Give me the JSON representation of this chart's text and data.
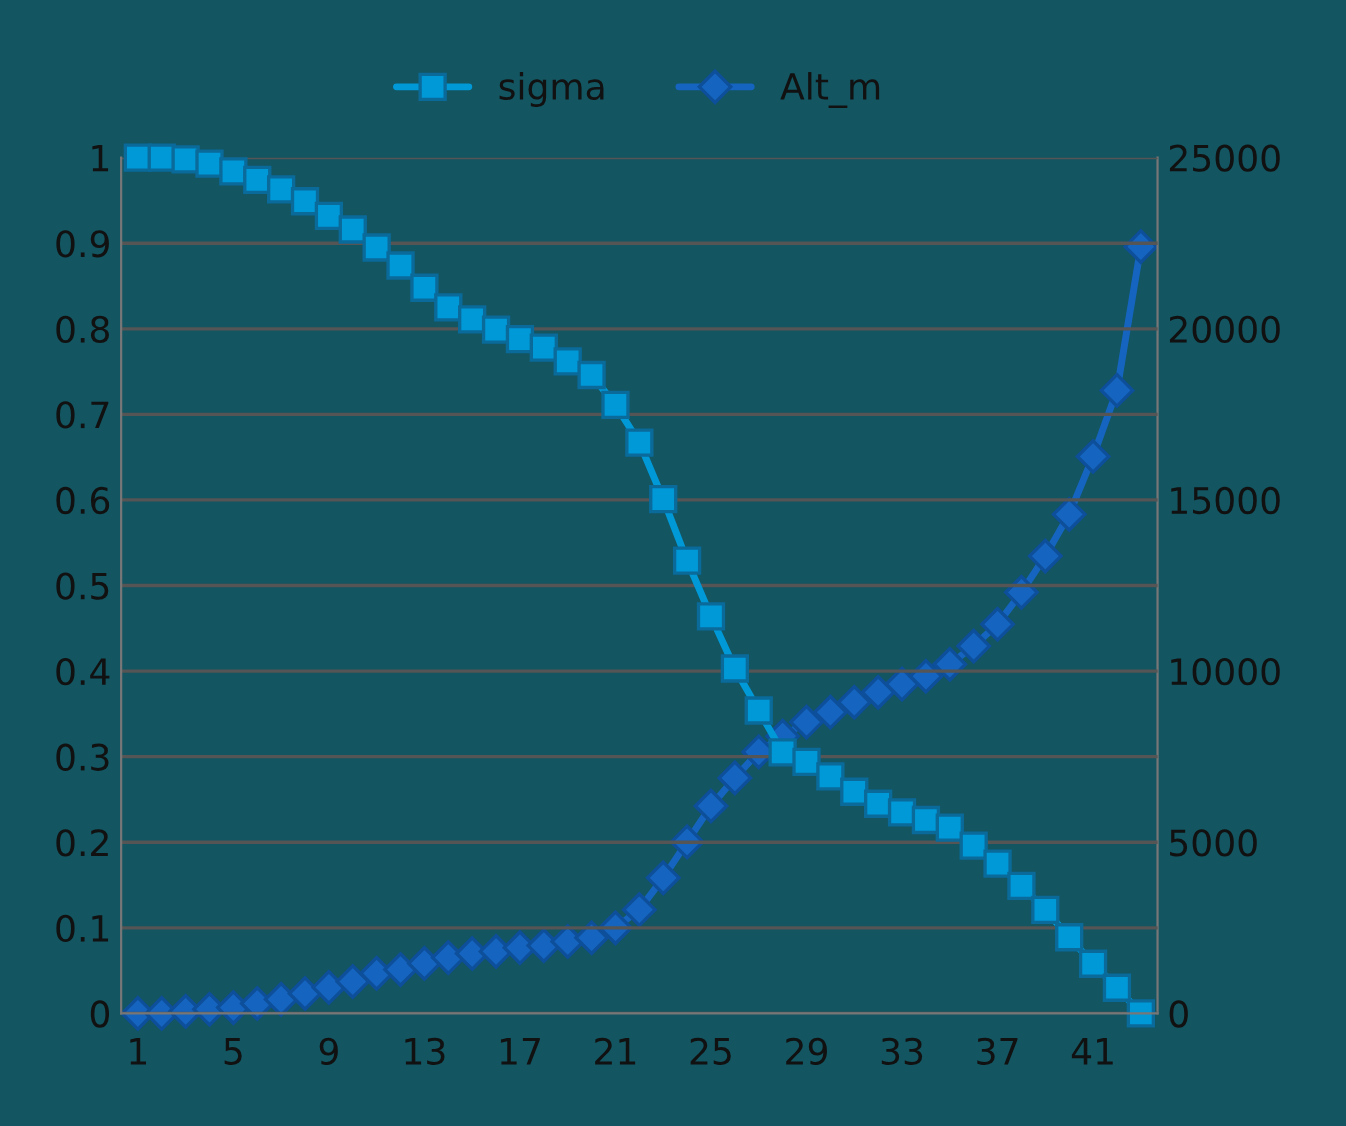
{
  "chart_data": {
    "type": "line",
    "categories": [
      "1",
      null,
      null,
      null,
      "5",
      null,
      null,
      null,
      "9",
      null,
      null,
      null,
      "13",
      null,
      null,
      null,
      "17",
      null,
      null,
      null,
      "21",
      null,
      null,
      null,
      "25",
      null,
      null,
      null,
      "29",
      null,
      null,
      null,
      "33",
      null,
      null,
      null,
      "37",
      null,
      null,
      null,
      "41",
      null,
      null
    ],
    "series": [
      {
        "name": "sigma",
        "color": "#0099d8",
        "marker": "square",
        "values": [
          1.0,
          1.0,
          0.998,
          0.993,
          0.984,
          0.974,
          0.963,
          0.949,
          0.932,
          0.916,
          0.895,
          0.874,
          0.848,
          0.825,
          0.811,
          0.799,
          0.788,
          0.778,
          0.762,
          0.746,
          0.711,
          0.667,
          0.601,
          0.529,
          0.464,
          0.403,
          0.354,
          0.305,
          0.294,
          0.277,
          0.259,
          0.245,
          0.235,
          0.226,
          0.217,
          0.196,
          0.175,
          0.149,
          0.121,
          0.089,
          0.058,
          0.03,
          0.0
        ]
      },
      {
        "name": "Alt_m",
        "color": "#1565c0",
        "marker": "diamond",
        "axis": "y2",
        "values": [
          0,
          0,
          60,
          120,
          170,
          290,
          410,
          580,
          760,
          930,
          1170,
          1280,
          1460,
          1630,
          1750,
          1810,
          1920,
          1980,
          2100,
          2210,
          2500,
          3030,
          3960,
          5010,
          6060,
          6880,
          7640,
          8100,
          8510,
          8800,
          9090,
          9380,
          9620,
          9850,
          10200,
          10730,
          11370,
          12300,
          13360,
          14580,
          16270,
          18200,
          22400
        ]
      }
    ],
    "ylim": [
      0,
      1
    ],
    "yticks": [
      0,
      0.1,
      0.2,
      0.3,
      0.4,
      0.5,
      0.6,
      0.7,
      0.8,
      0.9,
      1
    ],
    "y2lim": [
      0,
      25000
    ],
    "y2ticks": [
      0,
      5000,
      10000,
      15000,
      20000,
      25000
    ],
    "grid": "y",
    "legend": "top"
  }
}
